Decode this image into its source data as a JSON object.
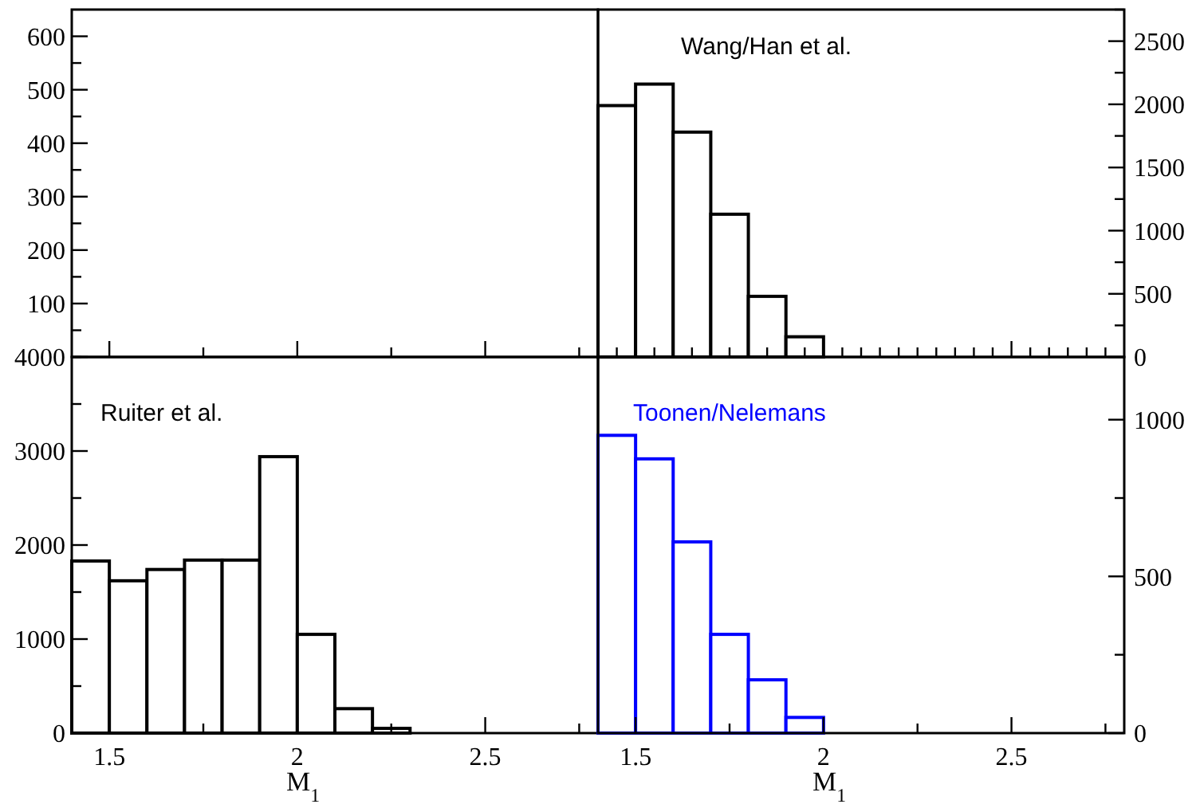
{
  "chart_data": [
    {
      "type": "histogram",
      "xlim": [
        1.4,
        2.8
      ],
      "xticks": [
        {
          "value": 1.5,
          "label": null
        },
        {
          "value": 1.75,
          "label": null
        },
        {
          "value": 2,
          "label": null
        },
        {
          "value": 2.25,
          "label": null
        },
        {
          "value": 2.5,
          "label": null
        },
        {
          "value": 2.75,
          "label": null
        }
      ],
      "ylim": [
        0,
        650
      ],
      "yticks": [
        {
          "value": 0,
          "label": null
        },
        {
          "value": 50,
          "label": null
        },
        100,
        {
          "value": 150,
          "label": null
        },
        200,
        {
          "value": 250,
          "label": null
        },
        300,
        {
          "value": 350,
          "label": null
        },
        400,
        {
          "value": 450,
          "label": null
        },
        500,
        {
          "value": 550,
          "label": null
        },
        600
      ],
      "tick_labels": "y"
    },
    {
      "type": "histogram",
      "title": "Wang/Han et al.",
      "bins": [
        1.4,
        1.5,
        1.6,
        1.7,
        1.8,
        1.9,
        2.0
      ],
      "xlim": [
        1.4,
        2.8
      ],
      "xticks": [
        {
          "value": 1.45,
          "label": null
        },
        {
          "value": 1.5,
          "label": null
        },
        {
          "value": 1.55,
          "label": null
        },
        {
          "value": 1.6,
          "label": null
        },
        {
          "value": 1.65,
          "label": null
        },
        {
          "value": 1.7,
          "label": null
        },
        {
          "value": 1.75,
          "label": null
        },
        {
          "value": 1.8,
          "label": null
        },
        {
          "value": 1.85,
          "label": null
        },
        {
          "value": 1.9,
          "label": null
        },
        {
          "value": 1.95,
          "label": null
        },
        {
          "value": 2,
          "label": null
        },
        {
          "value": 2.05,
          "label": null
        },
        {
          "value": 2.1,
          "label": null
        },
        {
          "value": 2.15,
          "label": null
        },
        {
          "value": 2.2,
          "label": null
        },
        {
          "value": 2.25,
          "label": null
        },
        {
          "value": 2.3,
          "label": null
        },
        {
          "value": 2.35,
          "label": null
        },
        {
          "value": 2.4,
          "label": null
        },
        {
          "value": 2.45,
          "label": null
        },
        {
          "value": 2.5,
          "label": null
        },
        {
          "value": 2.55,
          "label": null
        },
        {
          "value": 2.6,
          "label": null
        },
        {
          "value": 2.65,
          "label": null
        },
        {
          "value": 2.7,
          "label": null
        },
        {
          "value": 2.75,
          "label": null
        }
      ],
      "ylim": [
        0,
        2750
      ],
      "yticks": [
        0,
        {
          "value": 250,
          "label": null
        },
        500,
        {
          "value": 750,
          "label": null
        },
        1000,
        {
          "value": 1250,
          "label": null
        },
        1500,
        {
          "value": 1750,
          "label": null
        },
        2000,
        {
          "value": 2250,
          "label": null
        },
        2500,
        {
          "value": 2750,
          "label": null
        }
      ],
      "tick_labels": "y",
      "series": [
        {
          "color": "#000000",
          "values": [
            1990,
            2160,
            1780,
            1130,
            480,
            160
          ]
        }
      ]
    },
    {
      "type": "histogram",
      "title": "Ruiter et al.",
      "xlabel": "M$_{1}$",
      "bins": [
        1.4,
        1.5,
        1.6,
        1.7,
        1.8,
        1.9,
        2.0,
        2.1,
        2.2,
        2.3
      ],
      "xlim": [
        1.4,
        2.8
      ],
      "xticks": [
        1.5,
        {
          "value": 1.75,
          "label": null
        },
        2,
        {
          "value": 2.25,
          "label": null
        },
        2.5,
        {
          "value": 2.75,
          "label": null
        }
      ],
      "ylim": [
        0,
        4000
      ],
      "yticks": [
        0,
        {
          "value": 500,
          "label": null
        },
        1000,
        {
          "value": 1500,
          "label": null
        },
        2000,
        {
          "value": 2500,
          "label": null
        },
        3000,
        {
          "value": 3500,
          "label": null
        },
        4000
      ],
      "series": [
        {
          "color": "#000000",
          "values": [
            1830,
            1620,
            1740,
            1840,
            1840,
            2940,
            1050,
            260,
            50
          ]
        }
      ]
    },
    {
      "type": "histogram",
      "title": "Toonen/Nelemans",
      "xlabel": "M$_{1}$",
      "bins": [
        1.4,
        1.5,
        1.6,
        1.7,
        1.8,
        1.9,
        2.0
      ],
      "xlim": [
        1.4,
        2.8
      ],
      "xticks": [
        1.5,
        {
          "value": 1.75,
          "label": null
        },
        2,
        {
          "value": 2.25,
          "label": null
        },
        2.5,
        {
          "value": 2.75,
          "label": null
        }
      ],
      "ylim": [
        0,
        1200
      ],
      "yticks": [
        0,
        {
          "value": 250,
          "label": null
        },
        500,
        {
          "value": 750,
          "label": null
        },
        1000
      ],
      "series": [
        {
          "color": "#0000ff",
          "values": [
            950,
            875,
            610,
            315,
            170,
            50
          ]
        }
      ]
    }
  ]
}
